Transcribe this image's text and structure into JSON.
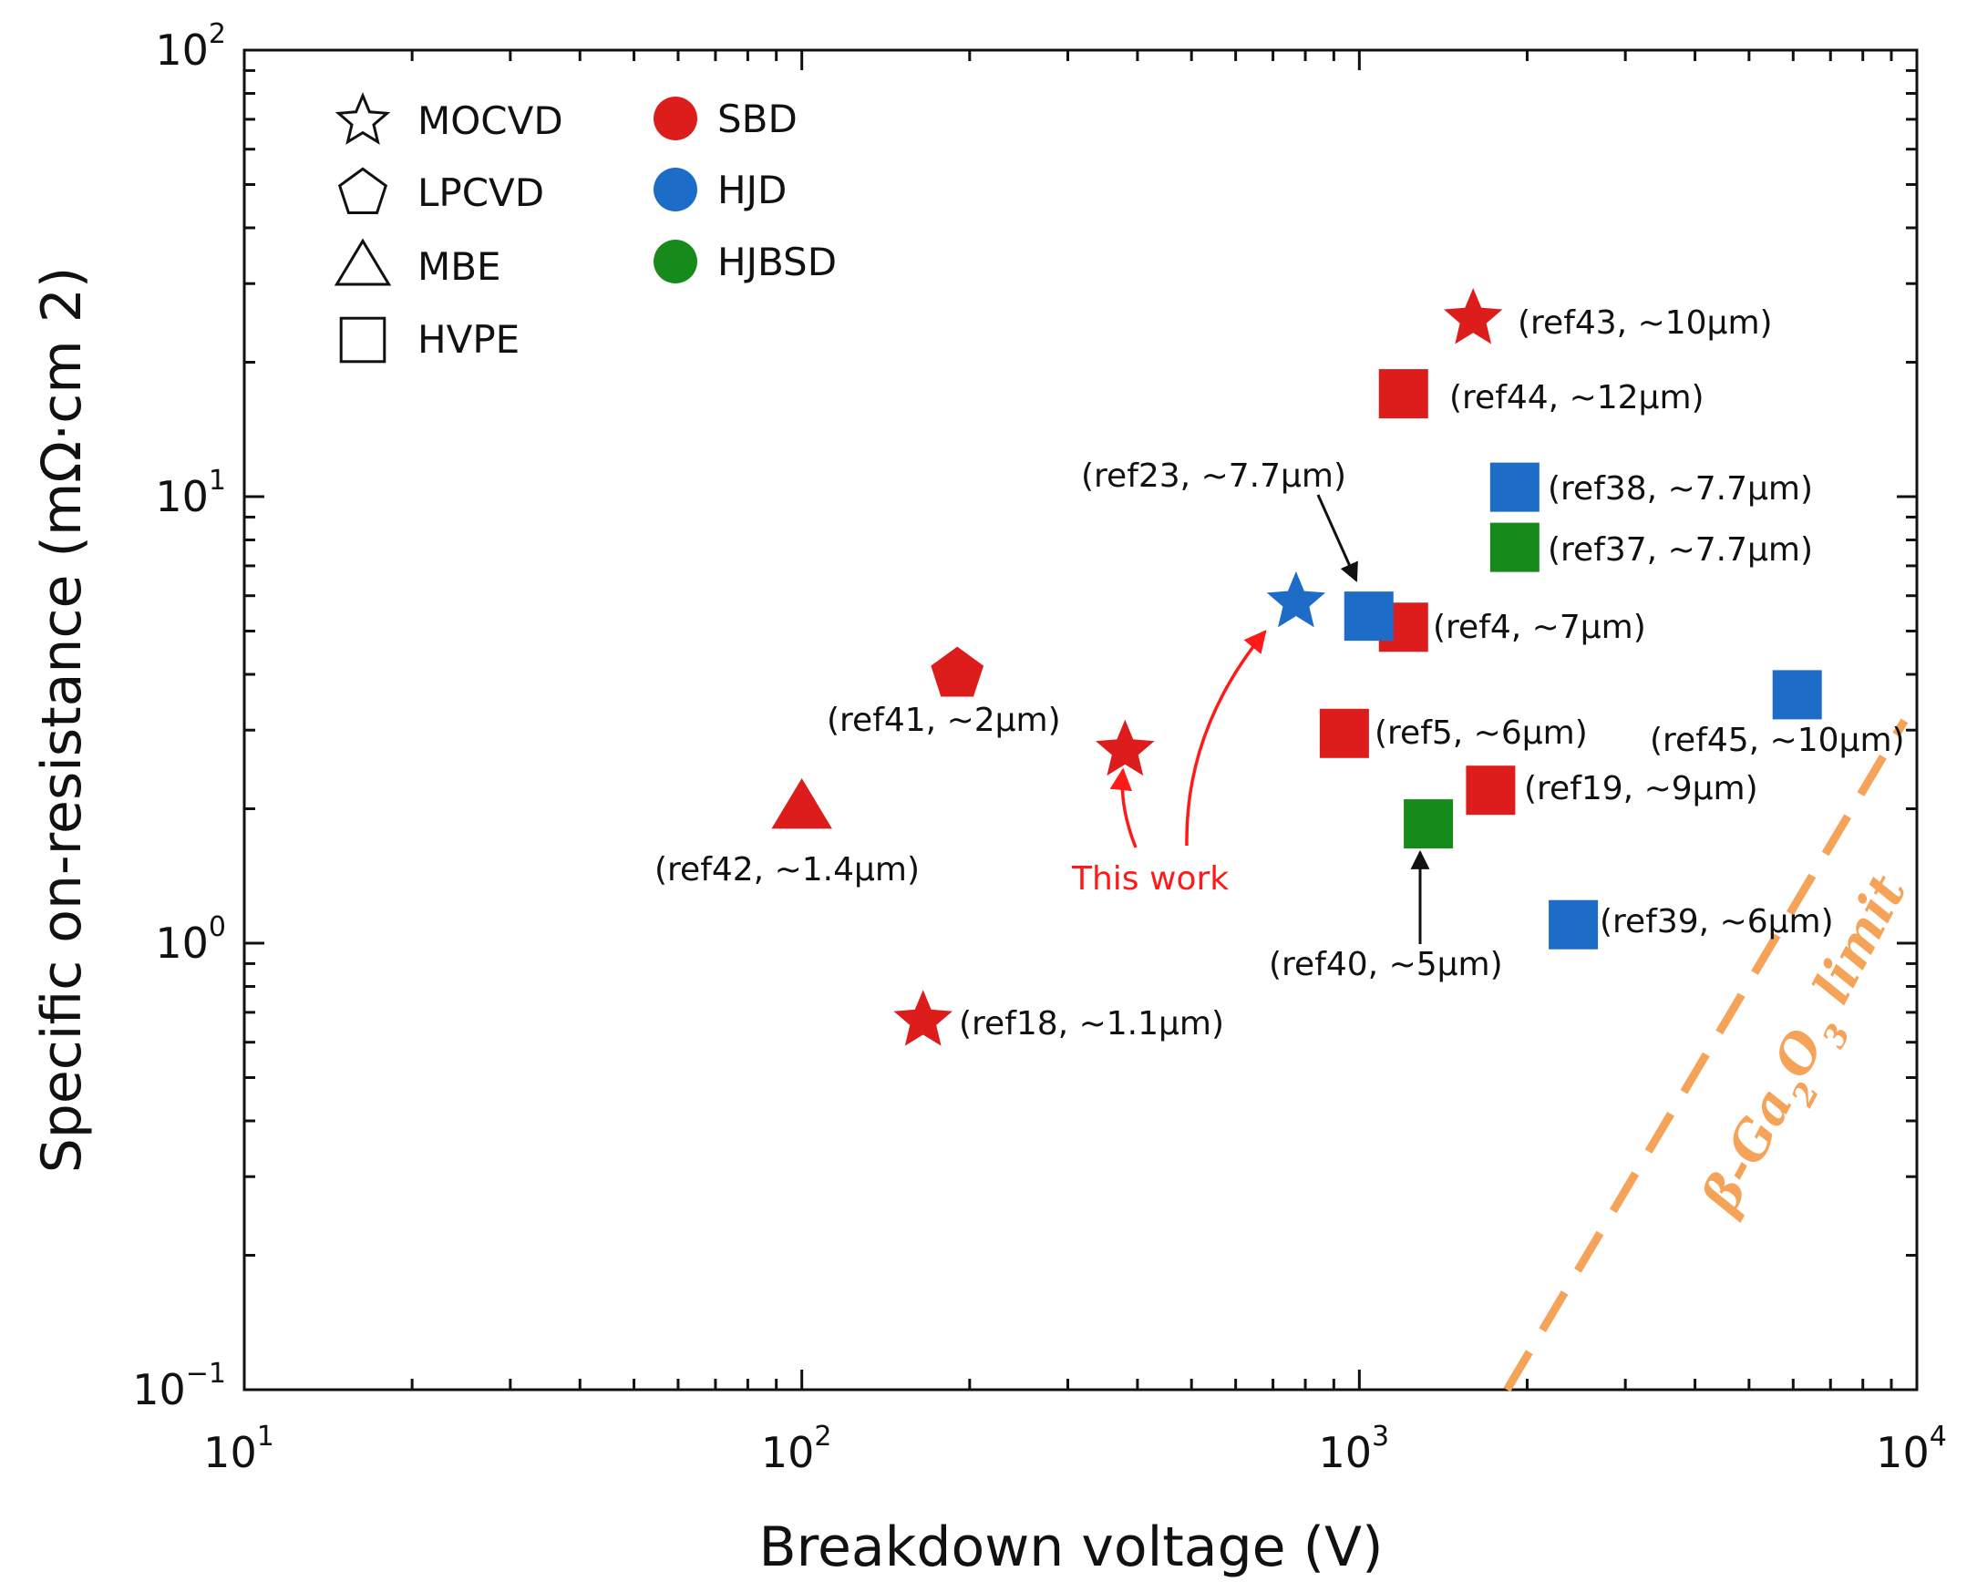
{
  "chart_data": {
    "type": "scatter",
    "xscale": "log",
    "yscale": "log",
    "xlim": [
      10,
      10000
    ],
    "ylim": [
      0.1,
      100
    ],
    "xlabel": "Breakdown voltage (V)",
    "ylabel": "Specific on-resistance (mΩ·cm 2)",
    "x_ticks": [
      {
        "base": "10",
        "exp": "1"
      },
      {
        "base": "10",
        "exp": "2"
      },
      {
        "base": "10",
        "exp": "3"
      },
      {
        "base": "10",
        "exp": "4"
      }
    ],
    "y_ticks": [
      {
        "base": "10",
        "exp": "−1"
      },
      {
        "base": "10",
        "exp": "0"
      },
      {
        "base": "10",
        "exp": "1"
      },
      {
        "base": "10",
        "exp": "2"
      }
    ],
    "legend_shapes": [
      {
        "marker": "star",
        "label": "MOCVD"
      },
      {
        "marker": "pentagon",
        "label": "LPCVD"
      },
      {
        "marker": "triangle",
        "label": "MBE"
      },
      {
        "marker": "square",
        "label": "HVPE"
      }
    ],
    "legend_colors": [
      {
        "color": "#dd1c1c",
        "label": "SBD"
      },
      {
        "color": "#1c6cc8",
        "label": "HJD"
      },
      {
        "color": "#178a1c",
        "label": "HJBSD"
      }
    ],
    "colors": {
      "SBD": "#dd1c1c",
      "HJD": "#1c6cc8",
      "HJBSD": "#178a1c",
      "limit": "#f6a35a",
      "this_work": "#ff1a1a"
    },
    "points": [
      {
        "label": "(ref43, ~10μm)",
        "x": 1600,
        "y": 25,
        "marker": "star",
        "device": "SBD"
      },
      {
        "label": "(ref44, ~12μm)",
        "x": 1200,
        "y": 17,
        "marker": "square",
        "device": "SBD"
      },
      {
        "label": "(ref38, ~7.7μm)",
        "x": 1900,
        "y": 10.5,
        "marker": "square",
        "device": "HJD"
      },
      {
        "label": "(ref37, ~7.7μm)",
        "x": 1900,
        "y": 7.7,
        "marker": "square",
        "device": "HJBSD"
      },
      {
        "label": "(ref4, ~7μm)",
        "x": 1200,
        "y": 5.1,
        "marker": "square",
        "device": "SBD"
      },
      {
        "label": "(ref23, ~7.7μm)",
        "x": 1040,
        "y": 5.4,
        "marker": "square",
        "device": "HJD"
      },
      {
        "label": "",
        "x": 770,
        "y": 5.8,
        "marker": "star",
        "device": "HJD"
      },
      {
        "label": "(ref41, ~2μm)",
        "x": 190,
        "y": 4.0,
        "marker": "pentagon",
        "device": "SBD"
      },
      {
        "label": "(ref45, ~10μm)",
        "x": 6100,
        "y": 3.6,
        "marker": "square",
        "device": "HJD"
      },
      {
        "label": "(ref5, ~6μm)",
        "x": 940,
        "y": 2.95,
        "marker": "square",
        "device": "SBD"
      },
      {
        "label": "",
        "x": 380,
        "y": 2.7,
        "marker": "star",
        "device": "SBD"
      },
      {
        "label": "(ref19, ~9μm)",
        "x": 1720,
        "y": 2.2,
        "marker": "square",
        "device": "SBD"
      },
      {
        "label": "(ref42, ~1.4μm)",
        "x": 100,
        "y": 2.0,
        "marker": "triangle",
        "device": "SBD"
      },
      {
        "label": "(ref40, ~5μm)",
        "x": 1330,
        "y": 1.85,
        "marker": "square",
        "device": "HJBSD"
      },
      {
        "label": "(ref39, ~6μm)",
        "x": 2420,
        "y": 1.1,
        "marker": "square",
        "device": "HJD"
      },
      {
        "label": "(ref18, ~1.1μm)",
        "x": 165,
        "y": 0.67,
        "marker": "star",
        "device": "SBD"
      }
    ],
    "annotations": [
      {
        "text": "This work"
      }
    ],
    "limit_line": {
      "label_base": "β-Ga",
      "label_sub1": "2",
      "label_mid": "O",
      "label_sub2": "3",
      "label_tail": " limit",
      "x": [
        1840,
        9500
      ],
      "y": [
        0.1,
        3.15
      ]
    }
  }
}
